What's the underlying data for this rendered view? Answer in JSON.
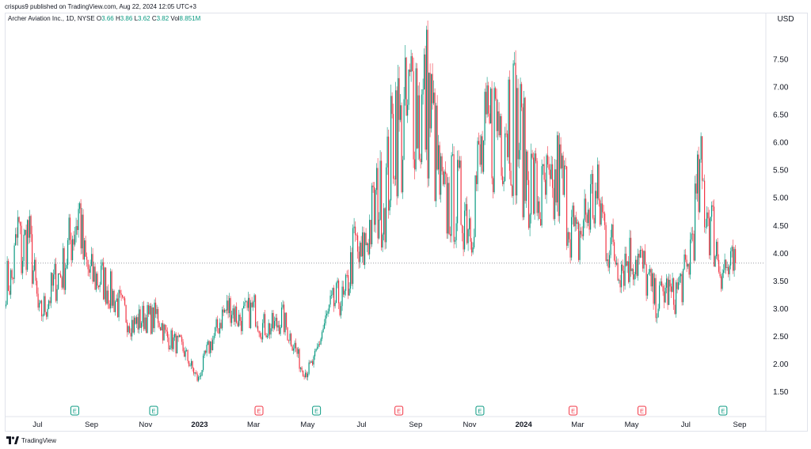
{
  "header": {
    "credit": "crispus9 published on TradingView.com, Aug 22, 2024 12:05 UTC+3"
  },
  "legend": {
    "symbol": "Archer Aviation Inc., 1D, NYSE",
    "o_label": "O",
    "o_value": "3.66",
    "h_label": "H",
    "h_value": "3.86",
    "l_label": "L",
    "l_value": "3.62",
    "c_label": "C",
    "c_value": "3.82",
    "vol_label": "Vol",
    "vol_value": "8.851M"
  },
  "currency": "USD",
  "footer": {
    "brand": "TradingView"
  },
  "colors": {
    "up": "#089981",
    "down": "#f23645",
    "grid": "#e0e3eb",
    "priceLine": "#787b86"
  },
  "chart_data": {
    "type": "candlestick",
    "y_ticks": [
      "1.50",
      "2.00",
      "2.50",
      "3.00",
      "3.50",
      "4.00",
      "4.50",
      "5.00",
      "5.50",
      "6.00",
      "6.50",
      "7.00",
      "7.50"
    ],
    "ylim": [
      1.15,
      8.0
    ],
    "current_price": 3.82,
    "x_ticks": [
      {
        "label": "Jul",
        "bold": false,
        "t": 0.07
      },
      {
        "label": "Sep",
        "bold": false,
        "t": 2.07
      },
      {
        "label": "Nov",
        "bold": false,
        "t": 4.07
      },
      {
        "label": "2023",
        "bold": true,
        "t": 6.07
      },
      {
        "label": "Mar",
        "bold": false,
        "t": 8.07
      },
      {
        "label": "May",
        "bold": false,
        "t": 10.07
      },
      {
        "label": "Jul",
        "bold": false,
        "t": 12.07
      },
      {
        "label": "Sep",
        "bold": false,
        "t": 14.07
      },
      {
        "label": "Nov",
        "bold": false,
        "t": 16.07
      },
      {
        "label": "2024",
        "bold": true,
        "t": 18.07
      },
      {
        "label": "Mar",
        "bold": false,
        "t": 20.07
      },
      {
        "label": "May",
        "bold": false,
        "t": 22.07
      },
      {
        "label": "Jul",
        "bold": false,
        "t": 24.07
      },
      {
        "label": "Sep",
        "bold": false,
        "t": 26.07
      }
    ],
    "earnings": [
      {
        "label": "E",
        "type": "up",
        "t": 1.45
      },
      {
        "label": "E",
        "type": "up",
        "t": 4.37
      },
      {
        "label": "E",
        "type": "down",
        "t": 8.27
      },
      {
        "label": "E",
        "type": "up",
        "t": 10.4
      },
      {
        "label": "E",
        "type": "down",
        "t": 13.45
      },
      {
        "label": "E",
        "type": "up",
        "t": 16.45
      },
      {
        "label": "E",
        "type": "down",
        "t": 19.9
      },
      {
        "label": "E",
        "type": "down",
        "t": 22.45
      },
      {
        "label": "E",
        "type": "up",
        "t": 25.45
      }
    ],
    "price_path": [
      [
        -0.9,
        3.5
      ],
      [
        -0.65,
        4.5
      ],
      [
        -0.55,
        3.9
      ],
      [
        -0.3,
        4.4
      ],
      [
        0.0,
        3.3
      ],
      [
        0.1,
        2.85
      ],
      [
        0.4,
        3.1
      ],
      [
        0.7,
        3.5
      ],
      [
        1.0,
        3.7
      ],
      [
        1.3,
        4.3
      ],
      [
        1.6,
        4.8
      ],
      [
        1.75,
        3.9
      ],
      [
        2.0,
        3.6
      ],
      [
        2.5,
        3.5
      ],
      [
        3.0,
        3.1
      ],
      [
        3.3,
        2.9
      ],
      [
        3.6,
        2.7
      ],
      [
        4.0,
        2.85
      ],
      [
        4.3,
        2.8
      ],
      [
        4.5,
        2.9
      ],
      [
        4.8,
        2.5
      ],
      [
        5.1,
        2.4
      ],
      [
        5.4,
        2.3
      ],
      [
        5.7,
        2.0
      ],
      [
        5.9,
        1.8
      ],
      [
        6.0,
        1.7
      ],
      [
        6.3,
        2.2
      ],
      [
        6.6,
        2.5
      ],
      [
        6.9,
        2.9
      ],
      [
        7.2,
        3.05
      ],
      [
        7.5,
        2.8
      ],
      [
        7.8,
        2.9
      ],
      [
        8.1,
        3.0
      ],
      [
        8.3,
        2.7
      ],
      [
        8.6,
        2.65
      ],
      [
        8.9,
        2.7
      ],
      [
        9.1,
        2.85
      ],
      [
        9.4,
        2.5
      ],
      [
        9.6,
        2.3
      ],
      [
        9.8,
        1.95
      ],
      [
        10.0,
        1.85
      ],
      [
        10.3,
        2.05
      ],
      [
        10.6,
        2.6
      ],
      [
        10.9,
        3.0
      ],
      [
        11.2,
        3.2
      ],
      [
        11.4,
        3.1
      ],
      [
        11.6,
        3.6
      ],
      [
        11.8,
        4.2
      ],
      [
        12.0,
        3.8
      ],
      [
        12.3,
        4.4
      ],
      [
        12.6,
        4.9
      ],
      [
        12.9,
        5.0
      ],
      [
        13.1,
        5.6
      ],
      [
        13.3,
        6.6
      ],
      [
        13.5,
        6.0
      ],
      [
        13.8,
        6.5
      ],
      [
        14.0,
        7.2
      ],
      [
        14.2,
        6.4
      ],
      [
        14.5,
        6.8
      ],
      [
        14.7,
        6.2
      ],
      [
        14.9,
        5.3
      ],
      [
        15.1,
        4.8
      ],
      [
        15.4,
        5.0
      ],
      [
        15.7,
        4.9
      ],
      [
        15.9,
        4.8
      ],
      [
        16.1,
        4.6
      ],
      [
        16.3,
        5.3
      ],
      [
        16.5,
        5.7
      ],
      [
        16.7,
        5.9
      ],
      [
        16.9,
        6.3
      ],
      [
        17.2,
        6.5
      ],
      [
        17.5,
        6.7
      ],
      [
        17.7,
        6.4
      ],
      [
        17.9,
        6.1
      ],
      [
        18.1,
        5.6
      ],
      [
        18.4,
        5.2
      ],
      [
        18.7,
        4.9
      ],
      [
        18.9,
        5.1
      ],
      [
        19.1,
        4.8
      ],
      [
        19.3,
        5.4
      ],
      [
        19.6,
        5.0
      ],
      [
        19.8,
        4.6
      ],
      [
        20.0,
        4.1
      ],
      [
        20.3,
        4.6
      ],
      [
        20.6,
        5.0
      ],
      [
        20.9,
        4.8
      ],
      [
        21.1,
        4.3
      ],
      [
        21.4,
        4.0
      ],
      [
        21.7,
        3.8
      ],
      [
        21.9,
        3.9
      ],
      [
        22.2,
        3.95
      ],
      [
        22.5,
        3.7
      ],
      [
        22.8,
        3.3
      ],
      [
        23.0,
        3.1
      ],
      [
        23.3,
        3.35
      ],
      [
        23.6,
        3.2
      ],
      [
        23.9,
        3.5
      ],
      [
        24.1,
        3.6
      ],
      [
        24.3,
        4.4
      ],
      [
        24.6,
        5.3
      ],
      [
        24.9,
        4.7
      ],
      [
        25.1,
        4.3
      ],
      [
        25.3,
        3.8
      ],
      [
        25.5,
        3.75
      ],
      [
        25.7,
        3.65
      ],
      [
        25.9,
        3.78
      ]
    ]
  }
}
